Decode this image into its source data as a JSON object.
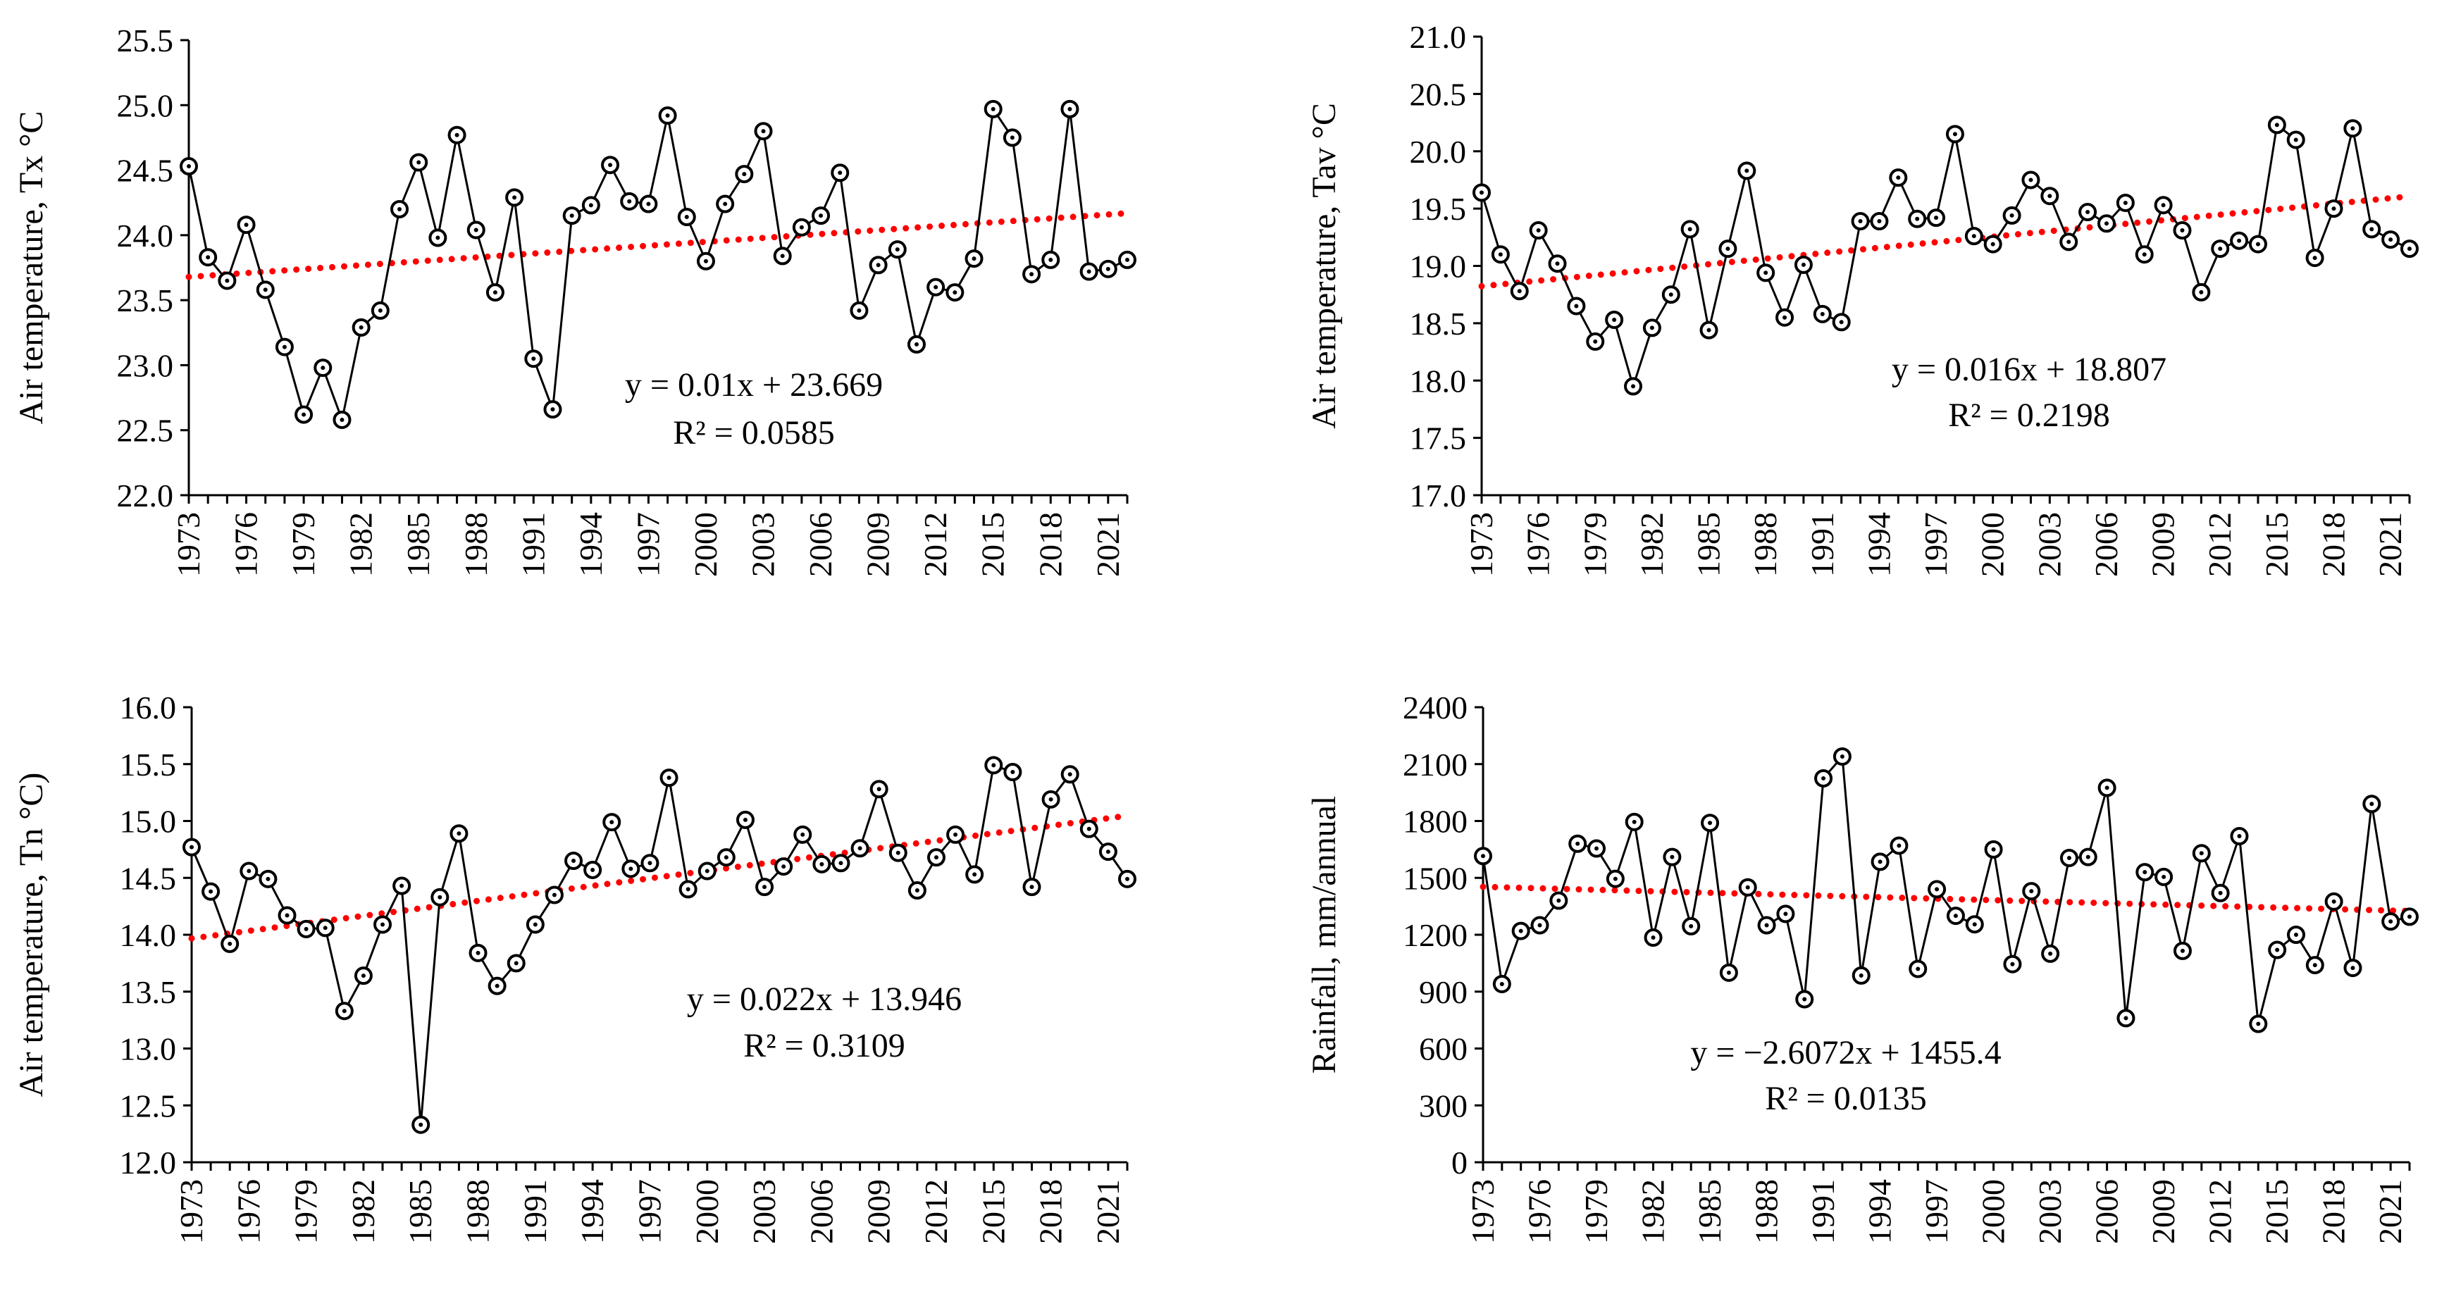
{
  "colors": {
    "series": "#000000",
    "trend": "#ff0000",
    "axis": "#000000",
    "background": "#ffffff"
  },
  "chart_data": [
    {
      "type": "line",
      "id": "tx",
      "ylabel": "Air temperature, Tx °C",
      "ylim": [
        22.0,
        25.5
      ],
      "ystep": 0.5,
      "ydecimals": 1,
      "xlim": [
        1973,
        2022
      ],
      "xticks": [
        1973,
        1976,
        1979,
        1982,
        1985,
        1988,
        1991,
        1994,
        1997,
        2000,
        2003,
        2006,
        2009,
        2012,
        2015,
        2018,
        2021
      ],
      "x": [
        1973,
        1974,
        1975,
        1976,
        1977,
        1978,
        1979,
        1980,
        1981,
        1982,
        1983,
        1984,
        1985,
        1986,
        1987,
        1988,
        1989,
        1990,
        1991,
        1992,
        1993,
        1994,
        1995,
        1996,
        1997,
        1998,
        1999,
        2000,
        2001,
        2002,
        2003,
        2004,
        2005,
        2006,
        2007,
        2008,
        2009,
        2010,
        2011,
        2012,
        2013,
        2014,
        2015,
        2016,
        2017,
        2018,
        2019,
        2020,
        2021,
        2022
      ],
      "values": [
        24.53,
        23.83,
        23.65,
        24.08,
        23.58,
        23.14,
        22.62,
        22.98,
        22.58,
        23.29,
        23.42,
        24.2,
        24.56,
        23.98,
        24.77,
        24.04,
        23.56,
        24.29,
        23.05,
        22.66,
        24.15,
        24.23,
        24.54,
        24.26,
        24.24,
        24.92,
        24.14,
        23.8,
        24.24,
        24.47,
        24.8,
        23.84,
        24.06,
        24.15,
        24.48,
        23.42,
        23.77,
        23.89,
        23.16,
        23.6,
        23.56,
        23.82,
        24.97,
        24.75,
        23.7,
        23.81,
        24.97,
        23.72,
        23.74,
        23.81
      ],
      "trend": {
        "slope": 0.01,
        "intercept": 23.669,
        "equation": "y = 0.01x + 23.669",
        "r2": "R² = 0.0585"
      }
    },
    {
      "type": "line",
      "id": "tav",
      "ylabel": "Air temperature,  Tav °C",
      "ylim": [
        17.0,
        21.0
      ],
      "ystep": 0.5,
      "ydecimals": 1,
      "xlim": [
        1973,
        2022
      ],
      "xticks": [
        1973,
        1976,
        1979,
        1982,
        1985,
        1988,
        1991,
        1994,
        1997,
        2000,
        2003,
        2006,
        2009,
        2012,
        2015,
        2018,
        2021
      ],
      "x": [
        1973,
        1974,
        1975,
        1976,
        1977,
        1978,
        1979,
        1980,
        1981,
        1982,
        1983,
        1984,
        1985,
        1986,
        1987,
        1988,
        1989,
        1990,
        1991,
        1992,
        1993,
        1994,
        1995,
        1996,
        1997,
        1998,
        1999,
        2000,
        2001,
        2002,
        2003,
        2004,
        2005,
        2006,
        2007,
        2008,
        2009,
        2010,
        2011,
        2012,
        2013,
        2014,
        2015,
        2016,
        2017,
        2018,
        2019,
        2020,
        2021,
        2022
      ],
      "values": [
        19.64,
        19.1,
        18.78,
        19.31,
        19.02,
        18.65,
        18.34,
        18.53,
        17.95,
        18.46,
        18.75,
        19.32,
        18.44,
        19.15,
        19.83,
        18.94,
        18.55,
        19.01,
        18.58,
        18.51,
        19.39,
        19.39,
        19.77,
        19.41,
        19.42,
        20.15,
        19.26,
        19.19,
        19.44,
        19.75,
        19.61,
        19.21,
        19.47,
        19.37,
        19.55,
        19.1,
        19.53,
        19.31,
        18.77,
        19.15,
        19.22,
        19.19,
        20.23,
        20.1,
        19.07,
        19.5,
        20.2,
        19.32,
        19.23,
        19.15
      ],
      "trend": {
        "slope": 0.016,
        "intercept": 18.807,
        "equation": "y = 0.016x + 18.807",
        "r2": "R² = 0.2198"
      }
    },
    {
      "type": "line",
      "id": "tn",
      "ylabel": "Air temperature, Tn °C)",
      "ylim": [
        12.0,
        16.0
      ],
      "ystep": 0.5,
      "ydecimals": 1,
      "xlim": [
        1973,
        2022
      ],
      "xticks": [
        1973,
        1976,
        1979,
        1982,
        1985,
        1988,
        1991,
        1994,
        1997,
        2000,
        2003,
        2006,
        2009,
        2012,
        2015,
        2018,
        2021
      ],
      "x": [
        1973,
        1974,
        1975,
        1976,
        1977,
        1978,
        1979,
        1980,
        1981,
        1982,
        1983,
        1984,
        1985,
        1986,
        1987,
        1988,
        1989,
        1990,
        1991,
        1992,
        1993,
        1994,
        1995,
        1996,
        1997,
        1998,
        1999,
        2000,
        2001,
        2002,
        2003,
        2004,
        2005,
        2006,
        2007,
        2008,
        2009,
        2010,
        2011,
        2012,
        2013,
        2014,
        2015,
        2016,
        2017,
        2018,
        2019,
        2020,
        2021,
        2022
      ],
      "values": [
        14.77,
        14.38,
        13.92,
        14.56,
        14.49,
        14.17,
        14.05,
        14.06,
        13.33,
        13.64,
        14.09,
        14.43,
        12.33,
        14.33,
        14.89,
        13.84,
        13.55,
        13.75,
        14.09,
        14.35,
        14.65,
        14.57,
        14.99,
        14.58,
        14.63,
        15.38,
        14.4,
        14.56,
        14.68,
        15.01,
        14.42,
        14.6,
        14.88,
        14.62,
        14.63,
        14.76,
        15.28,
        14.72,
        14.39,
        14.68,
        14.88,
        14.53,
        15.49,
        15.43,
        14.42,
        15.19,
        15.41,
        14.93,
        14.73,
        14.49
      ],
      "trend": {
        "slope": 0.022,
        "intercept": 13.946,
        "equation": "y = 0.022x + 13.946",
        "r2": "R² = 0.3109"
      }
    },
    {
      "type": "line",
      "id": "rain",
      "ylabel": "Rainfall, mm/annual",
      "ylim": [
        0,
        2400
      ],
      "ystep": 300,
      "ydecimals": 0,
      "xlim": [
        1973,
        2022
      ],
      "xticks": [
        1973,
        1976,
        1979,
        1982,
        1985,
        1988,
        1991,
        1994,
        1997,
        2000,
        2003,
        2006,
        2009,
        2012,
        2015,
        2018,
        2021
      ],
      "x": [
        1973,
        1974,
        1975,
        1976,
        1977,
        1978,
        1979,
        1980,
        1981,
        1982,
        1983,
        1984,
        1985,
        1986,
        1987,
        1988,
        1989,
        1990,
        1991,
        1992,
        1993,
        1994,
        1995,
        1996,
        1997,
        1998,
        1999,
        2000,
        2001,
        2002,
        2003,
        2004,
        2005,
        2006,
        2007,
        2008,
        2009,
        2010,
        2011,
        2012,
        2013,
        2014,
        2015,
        2016,
        2017,
        2018,
        2019,
        2020,
        2021,
        2022
      ],
      "values": [
        1615,
        940,
        1220,
        1250,
        1380,
        1680,
        1655,
        1495,
        1795,
        1185,
        1610,
        1245,
        1790,
        1000,
        1450,
        1250,
        1310,
        860,
        2025,
        2140,
        985,
        1585,
        1670,
        1020,
        1440,
        1300,
        1255,
        1650,
        1045,
        1430,
        1100,
        1605,
        1610,
        1975,
        760,
        1530,
        1505,
        1115,
        1630,
        1420,
        1720,
        730,
        1120,
        1200,
        1040,
        1375,
        1025,
        1890,
        1270,
        1295
      ],
      "trend": {
        "slope": -2.6072,
        "intercept": 1455.4,
        "equation": "y = −2.6072x + 1455.4",
        "r2": "R² = 0.0135"
      }
    }
  ]
}
